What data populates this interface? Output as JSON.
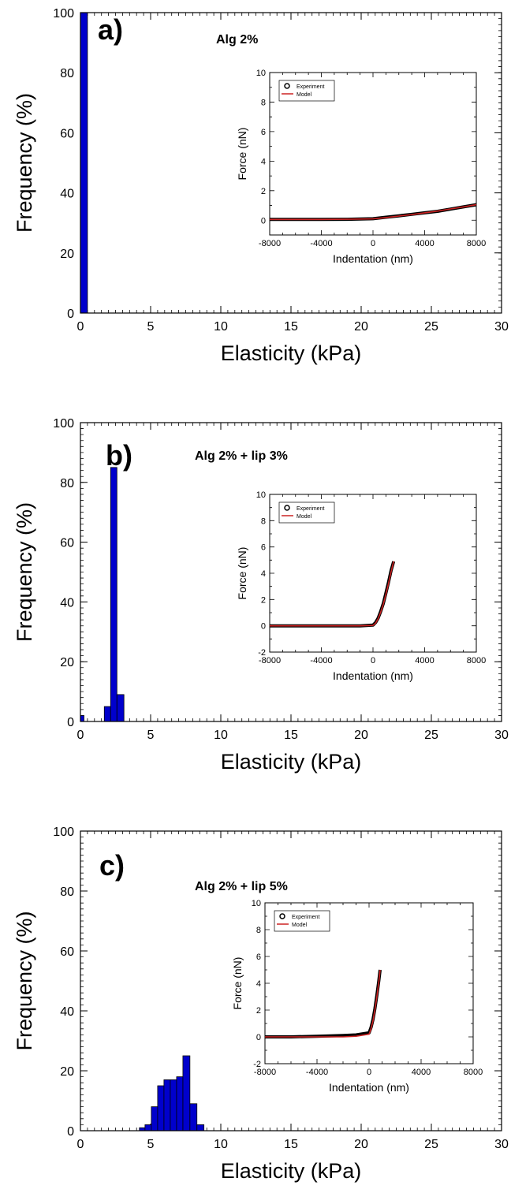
{
  "chart_data": [
    {
      "type": "bar",
      "panel_label": "a)",
      "annotation": "Alg 2%",
      "xlabel": "Elasticity (kPa)",
      "ylabel": "Frequency (%)",
      "xlim": [
        0,
        30
      ],
      "ylim": [
        0,
        100
      ],
      "xticks": [
        0,
        5,
        10,
        15,
        20,
        25,
        30
      ],
      "yticks": [
        0,
        20,
        40,
        60,
        80,
        100
      ],
      "bar_color": "#0000cc",
      "bars": [
        {
          "x0": 0.0,
          "x1": 0.5,
          "value": 100
        }
      ],
      "inset": {
        "type": "line",
        "xlabel": "Indentation (nm)",
        "ylabel": "Force (nN)",
        "xlim": [
          -8000,
          8000
        ],
        "ylim": [
          -1,
          10
        ],
        "xticks": [
          -8000,
          -4000,
          0,
          4000,
          8000
        ],
        "yticks": [
          0,
          2,
          4,
          6,
          8,
          10
        ],
        "legend": [
          "Experiment",
          "Model"
        ],
        "legend_position": "top-left",
        "series": [
          {
            "name": "Experiment",
            "color": "#000000",
            "x": [
              -8000,
              -6000,
              -4000,
              -2000,
              0,
              1000,
              2000,
              3000,
              4000,
              5000,
              6000,
              7000,
              8000
            ],
            "y": [
              0.05,
              0.05,
              0.05,
              0.06,
              0.1,
              0.2,
              0.3,
              0.4,
              0.5,
              0.6,
              0.75,
              0.9,
              1.05
            ]
          },
          {
            "name": "Model",
            "color": "#cc2222",
            "x": [
              -8000,
              -6000,
              -4000,
              -2000,
              0,
              1000,
              2000,
              3000,
              4000,
              5000,
              6000,
              7000,
              8000
            ],
            "y": [
              0.05,
              0.05,
              0.05,
              0.06,
              0.09,
              0.18,
              0.28,
              0.38,
              0.5,
              0.62,
              0.76,
              0.9,
              1.05
            ]
          }
        ]
      }
    },
    {
      "type": "bar",
      "panel_label": "b)",
      "annotation": "Alg 2% + lip 3%",
      "xlabel": "Elasticity (kPa)",
      "ylabel": "Frequency (%)",
      "xlim": [
        0,
        30
      ],
      "ylim": [
        0,
        100
      ],
      "xticks": [
        0,
        5,
        10,
        15,
        20,
        25,
        30
      ],
      "yticks": [
        0,
        20,
        40,
        60,
        80,
        100
      ],
      "bar_color": "#0000cc",
      "bars": [
        {
          "x0": 0.0,
          "x1": 0.25,
          "value": 2
        },
        {
          "x0": 1.7,
          "x1": 2.15,
          "value": 5
        },
        {
          "x0": 2.15,
          "x1": 2.6,
          "value": 85
        },
        {
          "x0": 2.6,
          "x1": 3.1,
          "value": 9
        }
      ],
      "inset": {
        "type": "line",
        "xlabel": "Indentation (nm)",
        "ylabel": "Force (nN)",
        "xlim": [
          -8000,
          8000
        ],
        "ylim": [
          -2,
          10
        ],
        "xticks": [
          -8000,
          -4000,
          0,
          4000,
          8000
        ],
        "yticks": [
          -2,
          0,
          2,
          4,
          6,
          8,
          10
        ],
        "legend": [
          "Experiment",
          "Model"
        ],
        "legend_position": "top-left",
        "series": [
          {
            "name": "Experiment",
            "color": "#000000",
            "x": [
              -8000,
              -6000,
              -4000,
              -2000,
              -1000,
              0,
              200,
              400,
              600,
              800,
              1000,
              1200,
              1400,
              1600
            ],
            "y": [
              0,
              0,
              0,
              0,
              0,
              0.05,
              0.25,
              0.6,
              1.1,
              1.7,
              2.5,
              3.3,
              4.2,
              4.9
            ]
          },
          {
            "name": "Model",
            "color": "#cc2222",
            "x": [
              -8000,
              -6000,
              -4000,
              -2000,
              -1000,
              0,
              200,
              400,
              600,
              800,
              1000,
              1200,
              1400,
              1600
            ],
            "y": [
              0,
              0,
              0,
              0,
              0,
              0.03,
              0.2,
              0.55,
              1.05,
              1.65,
              2.4,
              3.2,
              4.1,
              4.9
            ]
          }
        ]
      }
    },
    {
      "type": "bar",
      "panel_label": "c)",
      "annotation": "Alg 2% + lip 5%",
      "xlabel": "Elasticity (kPa)",
      "ylabel": "Frequency (%)",
      "xlim": [
        0,
        30
      ],
      "ylim": [
        0,
        100
      ],
      "xticks": [
        0,
        5,
        10,
        15,
        20,
        25,
        30
      ],
      "yticks": [
        0,
        20,
        40,
        60,
        80,
        100
      ],
      "bar_color": "#0000cc",
      "bars": [
        {
          "x0": 4.2,
          "x1": 4.6,
          "value": 1
        },
        {
          "x0": 4.6,
          "x1": 5.05,
          "value": 2
        },
        {
          "x0": 5.05,
          "x1": 5.5,
          "value": 8
        },
        {
          "x0": 5.5,
          "x1": 5.95,
          "value": 15
        },
        {
          "x0": 5.95,
          "x1": 6.4,
          "value": 17
        },
        {
          "x0": 6.4,
          "x1": 6.85,
          "value": 17
        },
        {
          "x0": 6.85,
          "x1": 7.3,
          "value": 18
        },
        {
          "x0": 7.3,
          "x1": 7.8,
          "value": 25
        },
        {
          "x0": 7.8,
          "x1": 8.3,
          "value": 9
        },
        {
          "x0": 8.3,
          "x1": 8.8,
          "value": 2
        }
      ],
      "inset": {
        "type": "line",
        "xlabel": "Indentation (nm)",
        "ylabel": "Force (nN)",
        "xlim": [
          -8000,
          8000
        ],
        "ylim": [
          -2,
          10
        ],
        "xticks": [
          -8000,
          -4000,
          0,
          4000,
          8000
        ],
        "yticks": [
          -2,
          0,
          2,
          4,
          6,
          8,
          10
        ],
        "legend": [
          "Experiment",
          "Model"
        ],
        "legend_position": "top-left",
        "series": [
          {
            "name": "Experiment",
            "color": "#000000",
            "x": [
              -8000,
              -6000,
              -4000,
              -2000,
              -1000,
              0,
              150,
              300,
              450,
              600,
              750,
              850
            ],
            "y": [
              0,
              0,
              0.05,
              0.1,
              0.15,
              0.3,
              0.7,
              1.3,
              2.1,
              3.1,
              4.2,
              5.0
            ]
          },
          {
            "name": "Model",
            "color": "#cc2222",
            "x": [
              -8000,
              -6000,
              -4000,
              -2000,
              -1000,
              0,
              150,
              300,
              450,
              600,
              750,
              850
            ],
            "y": [
              0,
              0,
              0,
              0,
              0.05,
              0.2,
              0.6,
              1.2,
              2.0,
              3.0,
              4.1,
              5.0
            ]
          }
        ]
      }
    }
  ]
}
